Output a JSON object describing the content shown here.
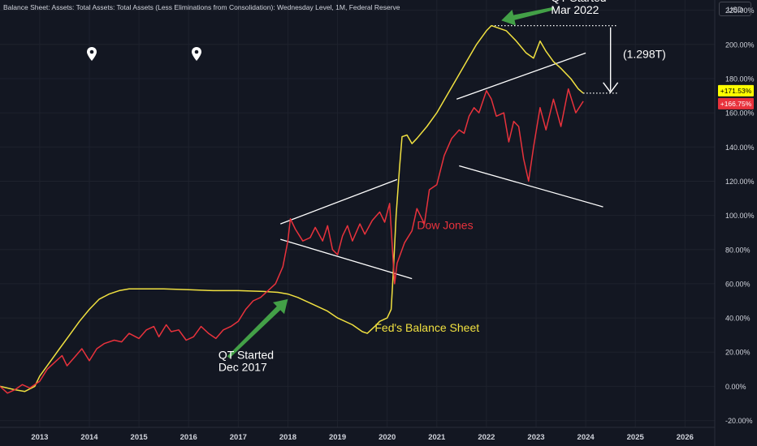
{
  "header": {
    "title": "Balance Sheet: Assets: Total Assets: Total Assets (Less Eliminations from Consolidation): Wednesday Level, 1M, Federal Reserve",
    "currency": "USD"
  },
  "colors": {
    "background": "#131722",
    "fed_line": "#f0e040",
    "dow_line": "#e8323c",
    "annotation_white": "#ffffff",
    "arrow_green": "#43a047",
    "grid": "#1e222d",
    "axis_text": "#d1d4dc"
  },
  "icons": [
    "map-pin-icon",
    "map-pin-icon"
  ],
  "chart_data": {
    "type": "line",
    "x_ticks": [
      "2013",
      "2014",
      "2015",
      "2016",
      "2017",
      "2018",
      "2019",
      "2020",
      "2021",
      "2022",
      "2023",
      "2024",
      "2025",
      "2026"
    ],
    "y_ticks": [
      "-20.00%",
      "0.00%",
      "20.00%",
      "40.00%",
      "60.00%",
      "80.00%",
      "100.00%",
      "120.00%",
      "140.00%",
      "160.00%",
      "180.00%",
      "200.00%",
      "220.00%"
    ],
    "y_tick_values": [
      -20,
      0,
      20,
      40,
      60,
      80,
      100,
      120,
      140,
      160,
      180,
      200,
      220
    ],
    "ylim": [
      -24,
      226
    ],
    "xlim": [
      2012.2,
      2026.6
    ],
    "y_unit": "%",
    "series": [
      {
        "name": "Fed's Balance Sheet",
        "color": "#f0e040",
        "points": [
          [
            2012.2,
            0
          ],
          [
            2012.5,
            -2
          ],
          [
            2012.7,
            -3
          ],
          [
            2012.9,
            0
          ],
          [
            2013.0,
            6
          ],
          [
            2013.2,
            14
          ],
          [
            2013.4,
            22
          ],
          [
            2013.6,
            30
          ],
          [
            2013.8,
            38
          ],
          [
            2014.0,
            45
          ],
          [
            2014.2,
            51
          ],
          [
            2014.4,
            54
          ],
          [
            2014.6,
            56
          ],
          [
            2014.8,
            57
          ],
          [
            2015.0,
            57
          ],
          [
            2015.5,
            57
          ],
          [
            2016.0,
            56.5
          ],
          [
            2016.5,
            56
          ],
          [
            2017.0,
            56
          ],
          [
            2017.5,
            55.5
          ],
          [
            2017.8,
            55
          ],
          [
            2018.0,
            54
          ],
          [
            2018.2,
            52
          ],
          [
            2018.5,
            48
          ],
          [
            2018.8,
            44
          ],
          [
            2019.0,
            40
          ],
          [
            2019.3,
            36
          ],
          [
            2019.5,
            32
          ],
          [
            2019.6,
            31
          ],
          [
            2019.75,
            35
          ],
          [
            2019.85,
            38
          ],
          [
            2020.0,
            40
          ],
          [
            2020.08,
            45
          ],
          [
            2020.12,
            65
          ],
          [
            2020.18,
            100
          ],
          [
            2020.25,
            128
          ],
          [
            2020.3,
            146
          ],
          [
            2020.4,
            147
          ],
          [
            2020.5,
            142
          ],
          [
            2020.6,
            145
          ],
          [
            2020.8,
            152
          ],
          [
            2021.0,
            160
          ],
          [
            2021.2,
            170
          ],
          [
            2021.4,
            180
          ],
          [
            2021.6,
            190
          ],
          [
            2021.8,
            200
          ],
          [
            2022.0,
            208
          ],
          [
            2022.1,
            211
          ],
          [
            2022.2,
            210
          ],
          [
            2022.4,
            208
          ],
          [
            2022.6,
            202
          ],
          [
            2022.8,
            195
          ],
          [
            2022.95,
            192
          ],
          [
            2023.08,
            202
          ],
          [
            2023.2,
            196
          ],
          [
            2023.35,
            190
          ],
          [
            2023.5,
            186
          ],
          [
            2023.7,
            180
          ],
          [
            2023.85,
            174
          ],
          [
            2023.95,
            171.5
          ]
        ]
      },
      {
        "name": "Dow Jones",
        "color": "#e8323c",
        "points": [
          [
            2012.2,
            0
          ],
          [
            2012.35,
            -4
          ],
          [
            2012.5,
            -2
          ],
          [
            2012.65,
            1
          ],
          [
            2012.8,
            -1
          ],
          [
            2013.0,
            3
          ],
          [
            2013.15,
            10
          ],
          [
            2013.3,
            14
          ],
          [
            2013.45,
            18
          ],
          [
            2013.55,
            12
          ],
          [
            2013.7,
            17
          ],
          [
            2013.85,
            22
          ],
          [
            2014.0,
            15
          ],
          [
            2014.15,
            22
          ],
          [
            2014.3,
            25
          ],
          [
            2014.5,
            27
          ],
          [
            2014.65,
            26
          ],
          [
            2014.8,
            31
          ],
          [
            2015.0,
            28
          ],
          [
            2015.15,
            33
          ],
          [
            2015.3,
            35
          ],
          [
            2015.4,
            29
          ],
          [
            2015.55,
            36
          ],
          [
            2015.65,
            32
          ],
          [
            2015.8,
            33
          ],
          [
            2015.95,
            27
          ],
          [
            2016.1,
            29
          ],
          [
            2016.25,
            35
          ],
          [
            2016.4,
            31
          ],
          [
            2016.55,
            28
          ],
          [
            2016.7,
            33
          ],
          [
            2016.85,
            35
          ],
          [
            2017.0,
            38
          ],
          [
            2017.15,
            45
          ],
          [
            2017.3,
            50
          ],
          [
            2017.45,
            52
          ],
          [
            2017.6,
            56
          ],
          [
            2017.75,
            60
          ],
          [
            2017.9,
            70
          ],
          [
            2018.0,
            85
          ],
          [
            2018.05,
            98
          ],
          [
            2018.15,
            92
          ],
          [
            2018.3,
            85
          ],
          [
            2018.45,
            87
          ],
          [
            2018.55,
            93
          ],
          [
            2018.7,
            85
          ],
          [
            2018.8,
            94
          ],
          [
            2018.9,
            80
          ],
          [
            2019.0,
            77
          ],
          [
            2019.1,
            88
          ],
          [
            2019.2,
            94
          ],
          [
            2019.3,
            85
          ],
          [
            2019.45,
            95
          ],
          [
            2019.55,
            89
          ],
          [
            2019.7,
            97
          ],
          [
            2019.85,
            102
          ],
          [
            2019.95,
            96
          ],
          [
            2020.05,
            107
          ],
          [
            2020.15,
            60
          ],
          [
            2020.2,
            72
          ],
          [
            2020.35,
            84
          ],
          [
            2020.5,
            91
          ],
          [
            2020.6,
            104
          ],
          [
            2020.75,
            95
          ],
          [
            2020.85,
            115
          ],
          [
            2021.0,
            118
          ],
          [
            2021.15,
            135
          ],
          [
            2021.3,
            145
          ],
          [
            2021.45,
            150
          ],
          [
            2021.55,
            148
          ],
          [
            2021.65,
            158
          ],
          [
            2021.75,
            163
          ],
          [
            2021.85,
            160
          ],
          [
            2022.0,
            173
          ],
          [
            2022.1,
            168
          ],
          [
            2022.2,
            158
          ],
          [
            2022.35,
            160
          ],
          [
            2022.45,
            143
          ],
          [
            2022.55,
            155
          ],
          [
            2022.65,
            152
          ],
          [
            2022.75,
            133
          ],
          [
            2022.85,
            120
          ],
          [
            2022.95,
            140
          ],
          [
            2023.08,
            163
          ],
          [
            2023.2,
            150
          ],
          [
            2023.35,
            168
          ],
          [
            2023.5,
            152
          ],
          [
            2023.65,
            174
          ],
          [
            2023.8,
            160
          ],
          [
            2023.95,
            166.75
          ]
        ]
      }
    ],
    "last_value_labels": [
      {
        "series": "Fed's Balance Sheet",
        "text": "+171.53%",
        "value": 171.53,
        "bg": "#ffff00",
        "fg": "#000000"
      },
      {
        "series": "Dow Jones",
        "text": "+166.75%",
        "value": 166.75,
        "bg": "#e8323c",
        "fg": "#ffffff"
      }
    ],
    "series_labels": [
      {
        "series": "Dow Jones",
        "text": "Dow Jones",
        "x": 2020.6,
        "y": 92,
        "color": "#e8323c"
      },
      {
        "series": "Fed's Balance Sheet",
        "text": "Fed's Balance Sheet",
        "x": 2019.75,
        "y": 32,
        "color": "#f0e040"
      }
    ],
    "annotations": [
      {
        "text_lines": [
          "QT Started",
          "Dec 2017"
        ],
        "x": 2016.6,
        "y": 16,
        "color": "#ffffff"
      },
      {
        "text_lines": [
          "QT Started",
          "Mar 2022"
        ],
        "x": 2023.3,
        "y": 225,
        "color": "#ffffff"
      },
      {
        "text": "(1.298T)",
        "x": 2024.75,
        "y": 192,
        "color": "#ffffff"
      }
    ],
    "trend_lines": [
      {
        "from": [
          2017.85,
          95
        ],
        "to": [
          2020.2,
          121
        ]
      },
      {
        "from": [
          2017.85,
          86
        ],
        "to": [
          2020.5,
          63
        ]
      },
      {
        "from": [
          2021.4,
          168
        ],
        "to": [
          2024.0,
          195
        ]
      },
      {
        "from": [
          2021.45,
          129
        ],
        "to": [
          2024.35,
          105
        ]
      }
    ],
    "dotted_lines": [
      {
        "from": [
          2022.1,
          211
        ],
        "to": [
          2024.65,
          211
        ]
      },
      {
        "from": [
          2023.95,
          171.5
        ],
        "to": [
          2024.65,
          171.5
        ]
      }
    ],
    "down_arrow": {
      "from": [
        2024.5,
        210
      ],
      "to": [
        2024.5,
        172
      ]
    },
    "green_arrows": [
      {
        "tail": [
          2016.8,
          17
        ],
        "head": [
          2018.0,
          51
        ]
      },
      {
        "tail": [
          2023.35,
          221
        ],
        "head": [
          2022.3,
          214
        ]
      }
    ]
  }
}
